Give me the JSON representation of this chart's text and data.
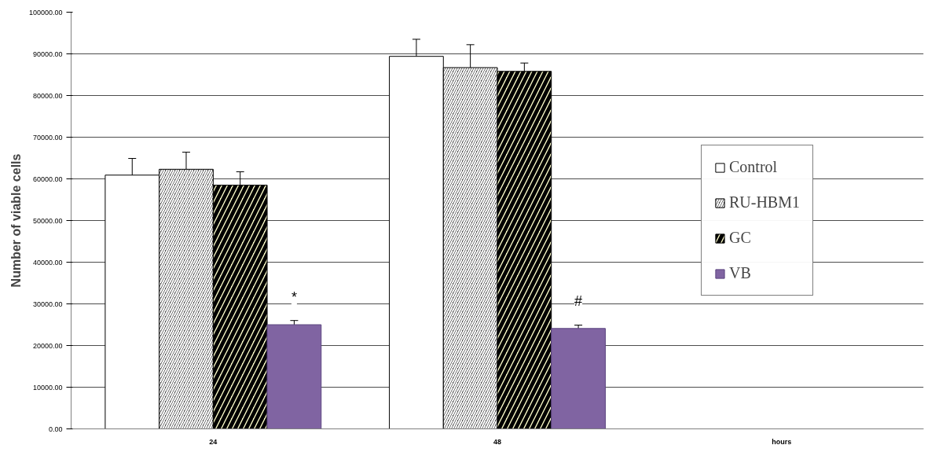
{
  "chart_data": {
    "type": "bar",
    "ylabel": "Number of viable cells",
    "categories": [
      "24",
      "48",
      "hours"
    ],
    "series": [
      {
        "name": "Control",
        "color": "#ffffff",
        "values": [
          60900,
          89400,
          null
        ],
        "errors": [
          4000,
          4100,
          null
        ]
      },
      {
        "name": "RU-HBM1",
        "color": "#404040",
        "values": [
          62300,
          86700,
          null
        ],
        "errors": [
          4100,
          5500,
          null
        ]
      },
      {
        "name": "GC",
        "color": "#ffffcc",
        "values": [
          58500,
          85800,
          null
        ],
        "errors": [
          3200,
          2000,
          null
        ]
      },
      {
        "name": "VB",
        "color": "#8064a2",
        "values": [
          25000,
          24100,
          null
        ],
        "errors": [
          1000,
          800,
          null
        ]
      }
    ],
    "ylim": [
      0,
      100000
    ],
    "yticks": [
      {
        "value": 0,
        "label": "0.00"
      },
      {
        "value": 10000,
        "label": "10000.00"
      },
      {
        "value": 20000,
        "label": "20000.00"
      },
      {
        "value": 30000,
        "label": "30000.00"
      },
      {
        "value": 40000,
        "label": "40000.00"
      },
      {
        "value": 50000,
        "label": "50000.00"
      },
      {
        "value": 60000,
        "label": "60000.00"
      },
      {
        "value": 70000,
        "label": "70000.00"
      },
      {
        "value": 80000,
        "label": "80000.00"
      },
      {
        "value": 90000,
        "label": "90000.00"
      },
      {
        "value": 100000,
        "label": "100000.00"
      }
    ],
    "annotations": [
      "*",
      "#"
    ],
    "grid": "y",
    "legend": "right"
  }
}
